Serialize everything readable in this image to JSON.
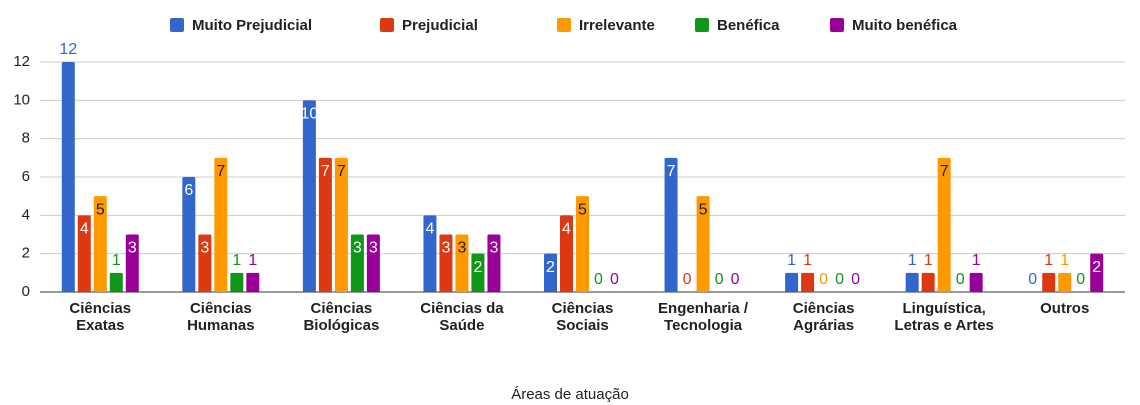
{
  "chart_data": {
    "type": "bar",
    "x_label": "Áreas de atuação",
    "categories": [
      "Ciências Exatas",
      "Ciências Humanas",
      "Ciências Biológicas",
      "Ciências da Saúde",
      "Ciências Sociais",
      "Engenharia / Tecnologia",
      "Ciências Agrárias",
      "Linguística, Letras e Artes",
      "Outros"
    ],
    "series": [
      {
        "name": "Muito Prejudicial",
        "color": "#3366cc",
        "values": [
          12,
          6,
          10,
          4,
          2,
          7,
          1,
          1,
          0
        ]
      },
      {
        "name": "Prejudicial",
        "color": "#dc3912",
        "values": [
          4,
          3,
          7,
          3,
          4,
          0,
          1,
          1,
          1
        ]
      },
      {
        "name": "Irrelevante",
        "color": "#ff9900",
        "values": [
          5,
          7,
          7,
          3,
          5,
          5,
          0,
          7,
          1
        ]
      },
      {
        "name": "Benéfica",
        "color": "#109618",
        "values": [
          1,
          1,
          3,
          2,
          0,
          0,
          0,
          0,
          0
        ]
      },
      {
        "name": "Muito benéfica",
        "color": "#990099",
        "values": [
          3,
          1,
          3,
          3,
          0,
          0,
          0,
          1,
          2
        ]
      }
    ],
    "ylim": [
      0,
      12
    ],
    "yticks": [
      0,
      2,
      4,
      6,
      8,
      10,
      12
    ],
    "grid": true,
    "legend": "top"
  }
}
